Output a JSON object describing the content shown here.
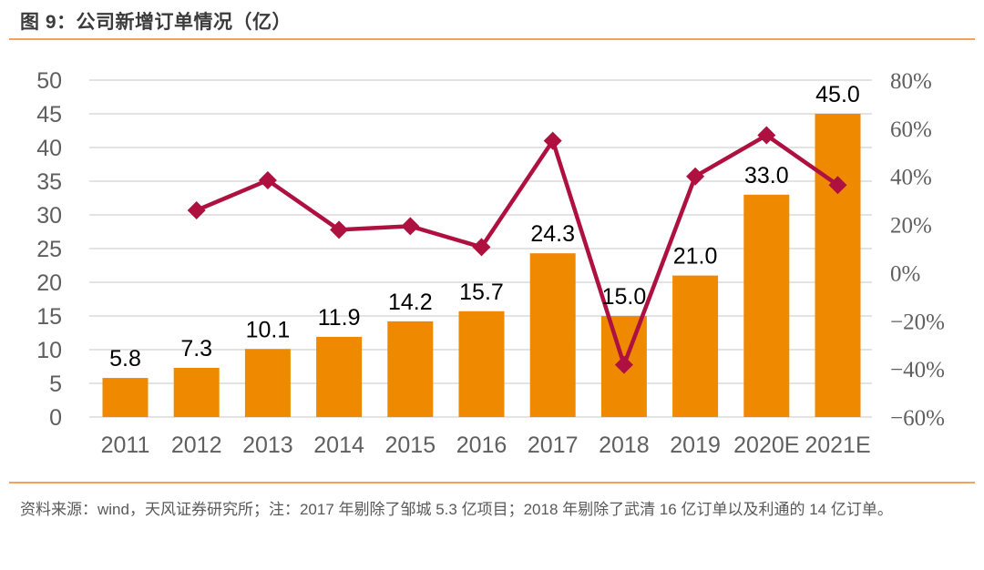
{
  "figure": {
    "title": "图 9：公司新增订单情况（亿）"
  },
  "footer": {
    "source_note": "资料来源：wind，天风证券研究所；注：2017 年剔除了邹城 5.3 亿项目；2018 年剔除了武清 16 亿订单以及利通的 14 亿订单。"
  },
  "colors": {
    "bar": "#EF8A00",
    "line": "#AE1140",
    "grid": "#DADADA",
    "axis_text": "#5f5f5f",
    "value_label": "#000000",
    "divider": "#F2A25F",
    "title_text": "#3b3b3b"
  },
  "chart_data": {
    "type": "bar+line",
    "title": "公司新增订单情况（亿）",
    "categories": [
      "2011",
      "2012",
      "2013",
      "2014",
      "2015",
      "2016",
      "2017",
      "2018",
      "2019",
      "2020E",
      "2021E"
    ],
    "series": [
      {
        "type": "bar",
        "axis": "left",
        "values": [
          5.8,
          7.3,
          10.1,
          11.9,
          14.2,
          15.7,
          24.3,
          15.0,
          21.0,
          33.0,
          45.0
        ],
        "labels": [
          "5.8",
          "7.3",
          "10.1",
          "11.9",
          "14.2",
          "15.7",
          "24.3",
          "15.0",
          "21.0",
          "33.0",
          "45.0"
        ]
      },
      {
        "type": "line",
        "axis": "right",
        "values_pct": [
          null,
          25.9,
          38.4,
          17.8,
          19.3,
          10.6,
          54.8,
          -38.3,
          40.0,
          57.1,
          36.4
        ]
      }
    ],
    "left_axis": {
      "min": 0,
      "max": 50,
      "step": 5,
      "ticks": [
        "0",
        "5",
        "10",
        "15",
        "20",
        "25",
        "30",
        "35",
        "40",
        "45",
        "50"
      ]
    },
    "right_axis": {
      "min": -60,
      "max": 80,
      "step": 20,
      "ticks": [
        "80%",
        "60%",
        "40%",
        "20%",
        "0%",
        "−20%",
        "−40%",
        "−60%"
      ]
    },
    "grid": true,
    "legend": "none"
  }
}
